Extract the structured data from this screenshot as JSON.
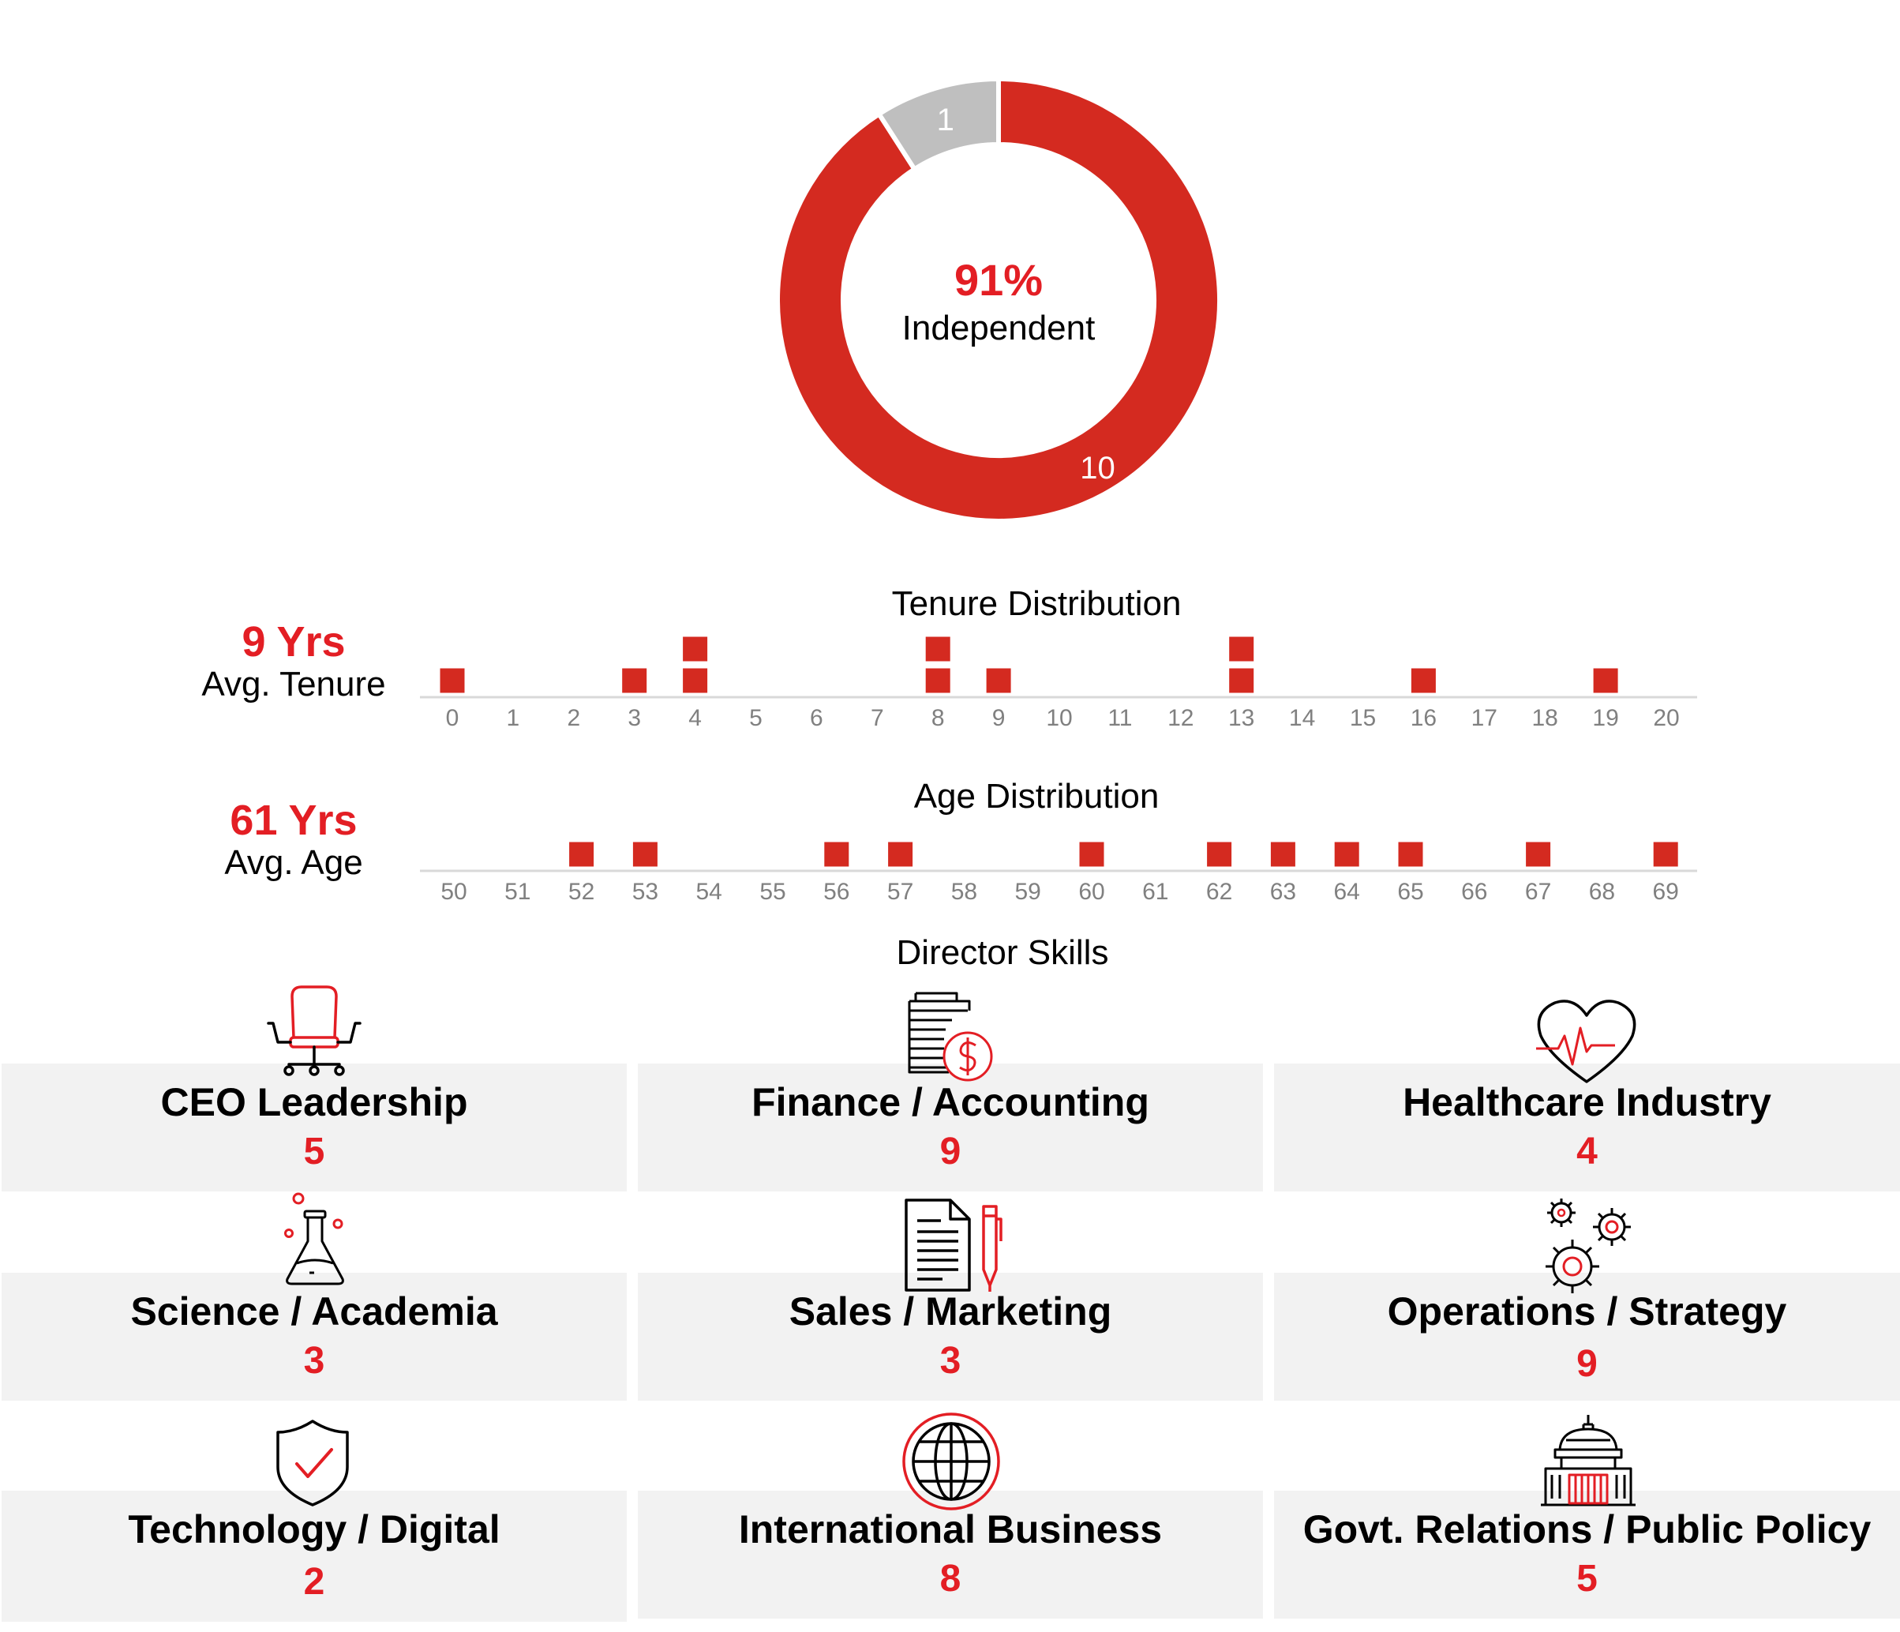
{
  "colors": {
    "accent": "#e31e24",
    "bar": "#d42a20",
    "grey": "#bfbfbf",
    "axis": "#d9d9d9",
    "tick": "#808080",
    "card": "#f2f2f2"
  },
  "independence": {
    "percent_label": "91%",
    "label": "Independent",
    "chart_data": {
      "type": "pie",
      "slices": [
        {
          "value": 10,
          "label": "10",
          "color": "#d42a20"
        },
        {
          "value": 1,
          "label": "1",
          "color": "#bfbfbf"
        }
      ]
    }
  },
  "tenure": {
    "title": "Tenure Distribution",
    "avg_value": "9 Yrs",
    "avg_label": "Avg. Tenure",
    "chart_data": {
      "type": "bar",
      "categories": [
        "0",
        "1",
        "2",
        "3",
        "4",
        "5",
        "6",
        "7",
        "8",
        "9",
        "10",
        "11",
        "12",
        "13",
        "14",
        "15",
        "16",
        "17",
        "18",
        "19",
        "20"
      ],
      "values": [
        1,
        0,
        0,
        1,
        2,
        0,
        0,
        0,
        2,
        1,
        0,
        0,
        0,
        2,
        0,
        0,
        1,
        0,
        0,
        1,
        0
      ],
      "title": "Tenure Distribution"
    }
  },
  "age": {
    "title": "Age Distribution",
    "avg_value": "61 Yrs",
    "avg_label": "Avg. Age",
    "chart_data": {
      "type": "bar",
      "categories": [
        "50",
        "51",
        "52",
        "53",
        "54",
        "55",
        "56",
        "57",
        "58",
        "59",
        "60",
        "61",
        "62",
        "63",
        "64",
        "65",
        "66",
        "67",
        "68",
        "69"
      ],
      "values": [
        0,
        0,
        1,
        1,
        0,
        0,
        1,
        1,
        0,
        0,
        1,
        0,
        1,
        1,
        1,
        1,
        0,
        1,
        0,
        1
      ],
      "title": "Age Distribution"
    }
  },
  "skills": {
    "title": "Director Skills",
    "items": [
      {
        "label": "CEO Leadership",
        "count": "5",
        "icon": "office-chair-icon"
      },
      {
        "label": "Finance / Accounting",
        "count": "9",
        "icon": "coins-dollar-icon"
      },
      {
        "label": "Healthcare Industry",
        "count": "4",
        "icon": "heart-pulse-icon"
      },
      {
        "label": "Science / Academia",
        "count": "3",
        "icon": "flask-icon"
      },
      {
        "label": "Sales / Marketing",
        "count": "3",
        "icon": "document-pen-icon"
      },
      {
        "label": "Operations / Strategy",
        "count": "9",
        "icon": "gears-icon"
      },
      {
        "label": "Technology / Digital",
        "count": "2",
        "icon": "shield-check-icon"
      },
      {
        "label": "International Business",
        "count": "8",
        "icon": "globe-icon"
      },
      {
        "label": "Govt. Relations / Public Policy",
        "count": "5",
        "icon": "capitol-building-icon"
      }
    ]
  }
}
